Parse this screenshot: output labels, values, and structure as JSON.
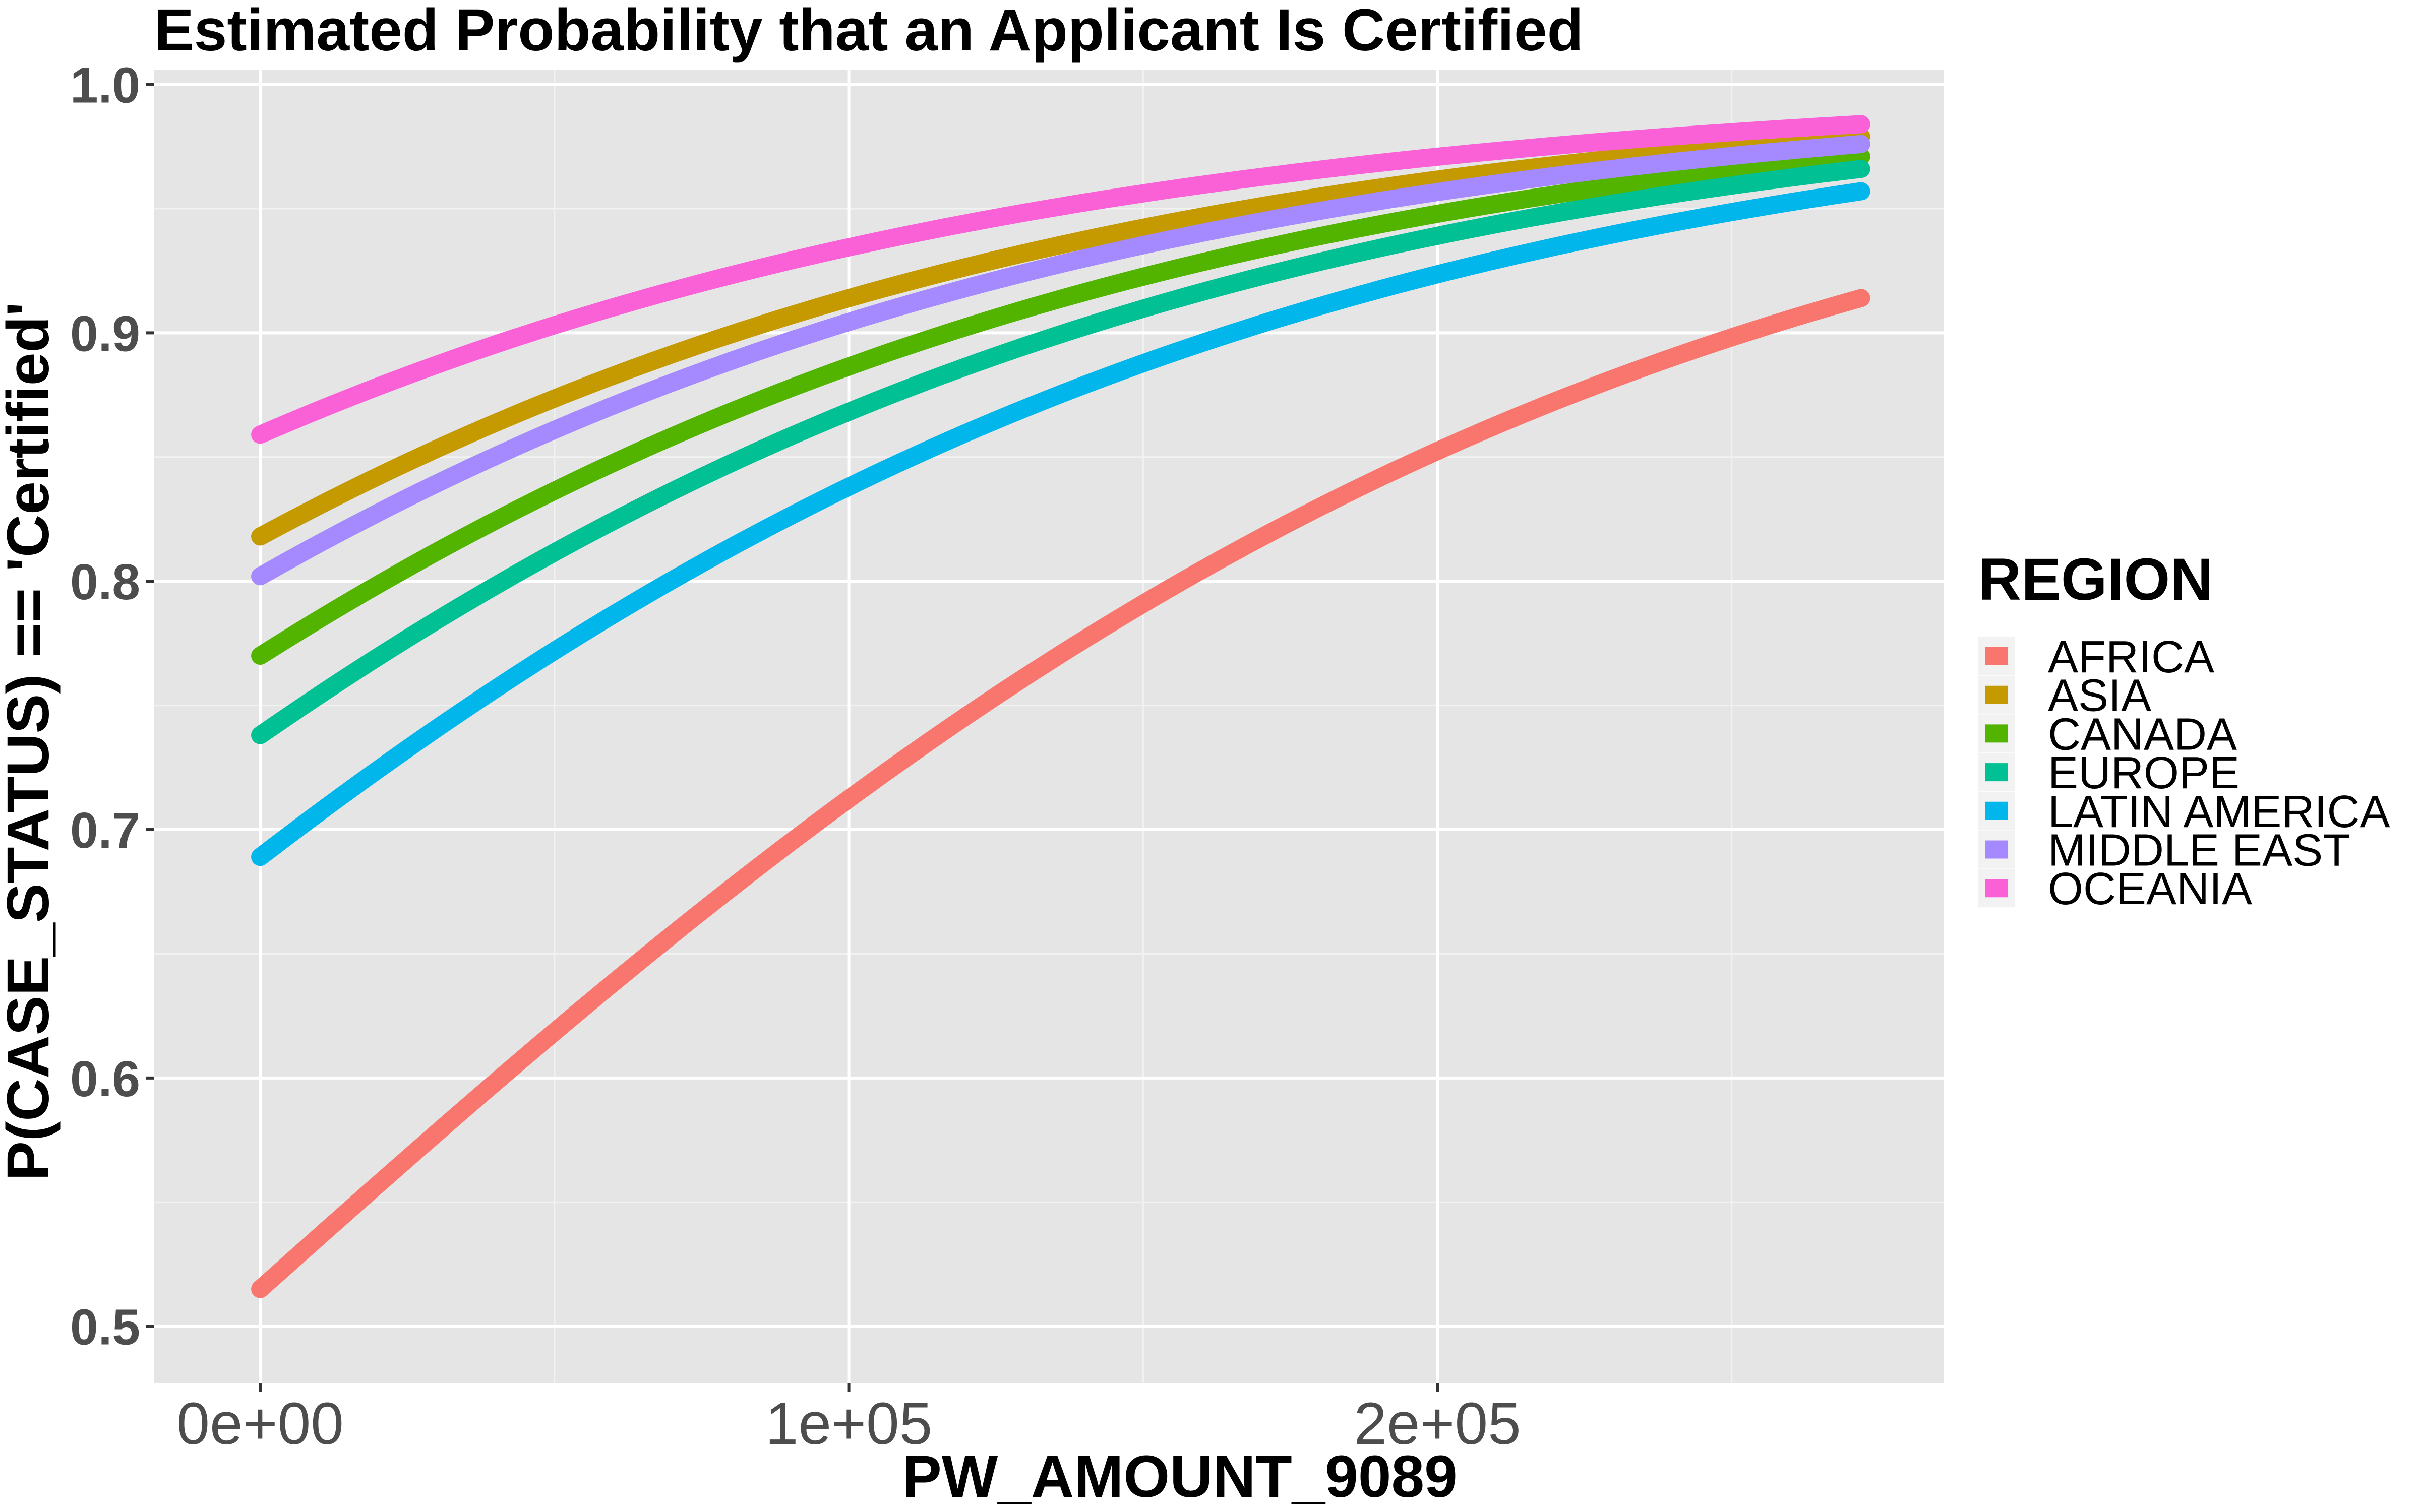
{
  "chart_data": {
    "type": "line",
    "title": "Estimated Probability that an Applicant Is Certified",
    "xlabel": "PW_AMOUNT_9089",
    "ylabel": "P(CASE_STATUS) == 'Certified'",
    "xlim": [
      -18000,
      286000
    ],
    "ylim": [
      0.477,
      1.006
    ],
    "x_ticks": [
      0,
      100000,
      200000
    ],
    "x_tick_labels": [
      "0e+00",
      "1e+05",
      "2e+05"
    ],
    "y_ticks": [
      0.5,
      0.6,
      0.7,
      0.8,
      0.9,
      1.0
    ],
    "y_tick_labels": [
      "0.5",
      "0.6",
      "0.7",
      "0.8",
      "0.9",
      "1.0"
    ],
    "x_range": [
      0,
      272000
    ],
    "grid": true,
    "background": "#e5e5e5",
    "legend": {
      "title": "REGION",
      "position": "right"
    },
    "series": [
      {
        "name": "AFRICA",
        "color": "#F8766D",
        "start": 0.515,
        "end": 0.914
      },
      {
        "name": "ASIA",
        "color": "#C49A00",
        "start": 0.818,
        "end": 0.979
      },
      {
        "name": "CANADA",
        "color": "#53B400",
        "start": 0.77,
        "end": 0.971
      },
      {
        "name": "EUROPE",
        "color": "#00C094",
        "start": 0.738,
        "end": 0.966
      },
      {
        "name": "LATIN AMERICA",
        "color": "#00B6EB",
        "start": 0.689,
        "end": 0.957
      },
      {
        "name": "MIDDLE EAST",
        "color": "#A58AFF",
        "start": 0.802,
        "end": 0.976
      },
      {
        "name": "OCEANIA",
        "color": "#FB61D7",
        "start": 0.859,
        "end": 0.984
      }
    ]
  }
}
